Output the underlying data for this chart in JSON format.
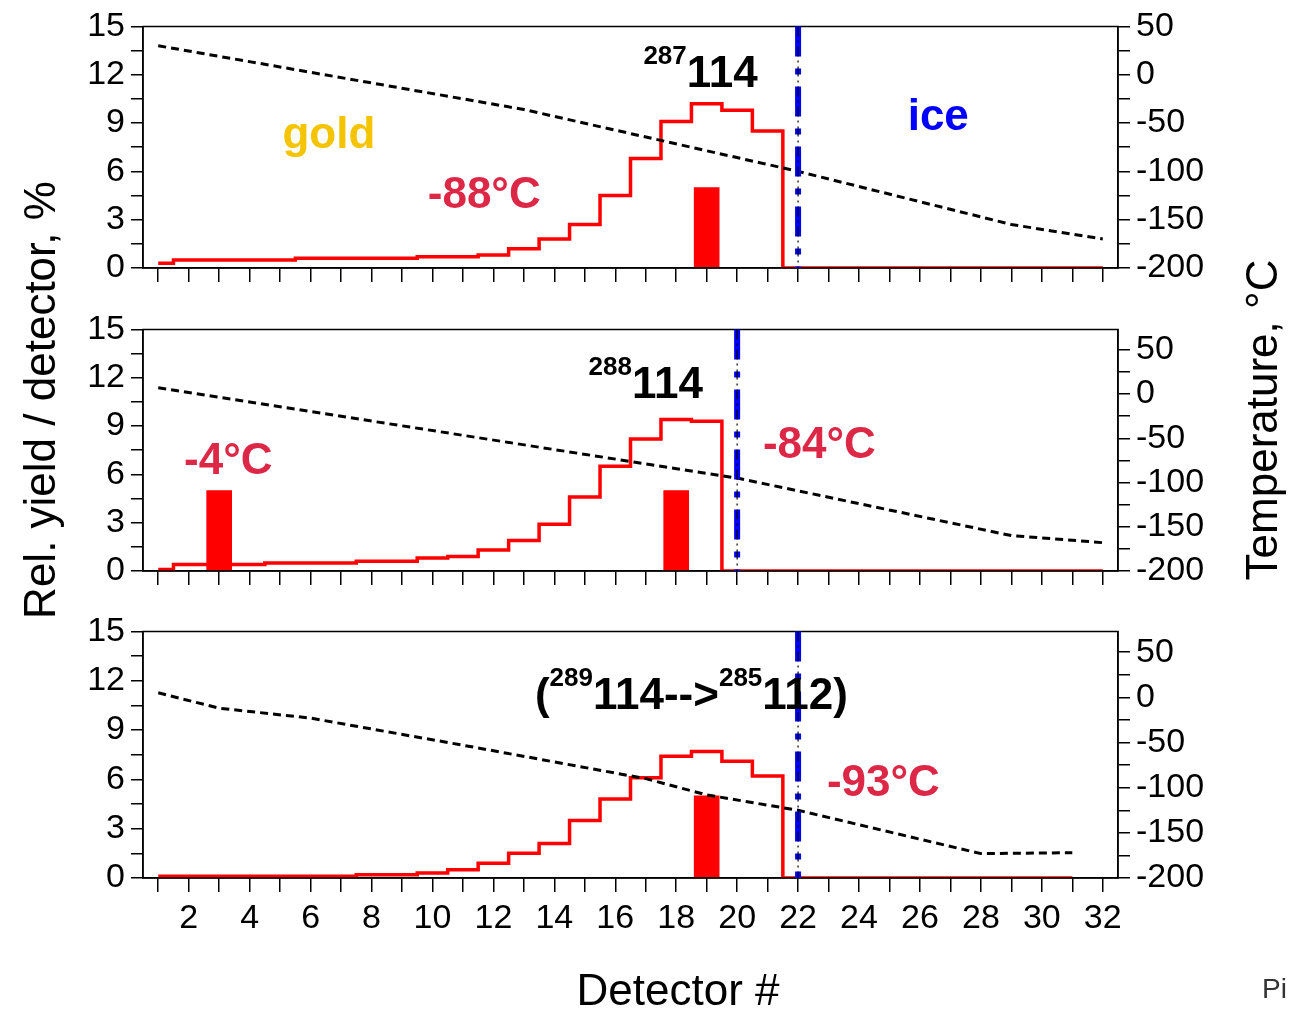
{
  "chart_data": [
    {
      "type": "step",
      "x": [
        1,
        2,
        3,
        4,
        5,
        6,
        7,
        8,
        9,
        10,
        11,
        12,
        13,
        14,
        15,
        16,
        17,
        18,
        19,
        20,
        21,
        22,
        23,
        24,
        25,
        26,
        27,
        28,
        29,
        30,
        31,
        32
      ],
      "series": [
        {
          "color": "#ff0000",
          "values": [
            0.3,
            0.5,
            0.5,
            0.5,
            0.5,
            0.6,
            0.6,
            0.6,
            0.6,
            0.7,
            0.7,
            0.8,
            1.2,
            1.8,
            2.7,
            4.5,
            6.8,
            9.1,
            10.2,
            9.8,
            8.5,
            0,
            0,
            0,
            0,
            0,
            0,
            0,
            0,
            0,
            0,
            0
          ]
        },
        {
          "type": "bar",
          "color": "#ff0000",
          "x": [
            19
          ],
          "values": [
            5
          ]
        },
        {
          "type": "line",
          "axis": "y2",
          "color": "#000000",
          "line_style": "dashed",
          "x": [
            1,
            13,
            22,
            29,
            32
          ],
          "values": [
            30,
            -36,
            -100,
            -155,
            -170
          ]
        }
      ],
      "xlim": [
        0.5,
        32.5
      ],
      "xticks": [
        {
          "value": 1,
          "label": null
        },
        2,
        {
          "value": 3,
          "label": null
        },
        4,
        {
          "value": 5,
          "label": null
        },
        6,
        {
          "value": 7,
          "label": null
        },
        8,
        {
          "value": 9,
          "label": null
        },
        10,
        {
          "value": 11,
          "label": null
        },
        12,
        {
          "value": 13,
          "label": null
        },
        14,
        {
          "value": 15,
          "label": null
        },
        16,
        {
          "value": 17,
          "label": null
        },
        18,
        {
          "value": 19,
          "label": null
        },
        20,
        {
          "value": 21,
          "label": null
        },
        22,
        {
          "value": 23,
          "label": null
        },
        24,
        {
          "value": 25,
          "label": null
        },
        26,
        {
          "value": 27,
          "label": null
        },
        28,
        {
          "value": 29,
          "label": null
        },
        30,
        {
          "value": 31,
          "label": null
        },
        32
      ],
      "ylim": [
        0,
        15
      ],
      "yticks": [
        0,
        {
          "value": 1.5,
          "label": null
        },
        3,
        {
          "value": 4.5,
          "label": null
        },
        6,
        {
          "value": 7.5,
          "label": null
        },
        9,
        {
          "value": 10.5,
          "label": null
        },
        12,
        {
          "value": 13.5,
          "label": null
        },
        15
      ],
      "y2lim": [
        -200,
        50
      ],
      "y2ticks": [
        -200,
        {
          "value": -175,
          "label": null
        },
        -150,
        {
          "value": -125,
          "label": null
        },
        -100,
        {
          "value": -75,
          "label": null
        },
        -50,
        {
          "value": -25,
          "label": null
        },
        0,
        {
          "value": 25,
          "label": null
        },
        50
      ],
      "ref_lines": [
        {
          "axis": "x",
          "value": 22,
          "color": "#0000ff",
          "line_style": "dashed"
        },
        {
          "axis": "x",
          "value": 22,
          "color": "#000000",
          "line_style": "dotted"
        }
      ],
      "annotations": [
        "$^{287}$114",
        "gold",
        "ice",
        "-88°C"
      ],
      "tick_labels": "y",
      "marker": "none",
      "legend": false,
      "grid": false
    },
    {
      "type": "step",
      "x": [
        1,
        2,
        3,
        4,
        5,
        6,
        7,
        8,
        9,
        10,
        11,
        12,
        13,
        14,
        15,
        16,
        17,
        18,
        19,
        20,
        21,
        22,
        23,
        24,
        25,
        26,
        27,
        28,
        29,
        30,
        31,
        32
      ],
      "series": [
        {
          "color": "#ff0000",
          "values": [
            0.1,
            0.4,
            0.4,
            0.4,
            0.5,
            0.5,
            0.5,
            0.6,
            0.6,
            0.8,
            0.9,
            1.3,
            1.9,
            2.9,
            4.6,
            6.5,
            8.2,
            9.4,
            9.3,
            0,
            0,
            0,
            0,
            0,
            0,
            0,
            0,
            0,
            0,
            0,
            0,
            0
          ]
        },
        {
          "type": "bar",
          "color": "#ff0000",
          "x": [
            3,
            18
          ],
          "values": [
            5,
            5
          ]
        },
        {
          "type": "line",
          "axis": "y2",
          "color": "#000000",
          "line_style": "dashed",
          "x": [
            1,
            20,
            29,
            32
          ],
          "values": [
            7,
            -95,
            -160,
            -168
          ]
        }
      ],
      "xlim": [
        0.5,
        32.5
      ],
      "xticks": [
        {
          "value": 1,
          "label": null
        },
        2,
        {
          "value": 3,
          "label": null
        },
        4,
        {
          "value": 5,
          "label": null
        },
        6,
        {
          "value": 7,
          "label": null
        },
        8,
        {
          "value": 9,
          "label": null
        },
        10,
        {
          "value": 11,
          "label": null
        },
        12,
        {
          "value": 13,
          "label": null
        },
        14,
        {
          "value": 15,
          "label": null
        },
        16,
        {
          "value": 17,
          "label": null
        },
        18,
        {
          "value": 19,
          "label": null
        },
        20,
        {
          "value": 21,
          "label": null
        },
        22,
        {
          "value": 23,
          "label": null
        },
        24,
        {
          "value": 25,
          "label": null
        },
        26,
        {
          "value": 27,
          "label": null
        },
        28,
        {
          "value": 29,
          "label": null
        },
        30,
        {
          "value": 31,
          "label": null
        },
        32
      ],
      "ylim": [
        0,
        15
      ],
      "yticks": [
        0,
        {
          "value": 1.5,
          "label": null
        },
        3,
        {
          "value": 4.5,
          "label": null
        },
        6,
        {
          "value": 7.5,
          "label": null
        },
        9,
        {
          "value": 10.5,
          "label": null
        },
        12,
        {
          "value": 13.5,
          "label": null
        },
        15
      ],
      "y2lim": [
        -200,
        73
      ],
      "y2ticks": [
        -200,
        {
          "value": -175,
          "label": null
        },
        -150,
        {
          "value": -125,
          "label": null
        },
        -100,
        {
          "value": -75,
          "label": null
        },
        -50,
        {
          "value": -25,
          "label": null
        },
        0,
        {
          "value": 25,
          "label": null
        },
        50
      ],
      "ylabel": "Rel. yield / detector, %",
      "y2label": "Temperature, °C",
      "ref_lines": [
        {
          "axis": "x",
          "value": 20,
          "color": "#0000ff",
          "line_style": "dashed"
        },
        {
          "axis": "x",
          "value": 20,
          "color": "#000000",
          "line_style": "dotted"
        }
      ],
      "annotations": [
        "$^{288}$114",
        "-4°C",
        "-84°C"
      ],
      "tick_labels": "y",
      "marker": "none",
      "legend": false,
      "grid": false
    },
    {
      "type": "step",
      "x": [
        1,
        2,
        3,
        4,
        5,
        6,
        7,
        8,
        9,
        10,
        11,
        12,
        13,
        14,
        15,
        16,
        17,
        18,
        19,
        20,
        21,
        22,
        23,
        24,
        25,
        26,
        27,
        28,
        29,
        30,
        31
      ],
      "series": [
        {
          "color": "#ff0000",
          "values": [
            0.1,
            0.1,
            0.1,
            0.1,
            0.1,
            0.1,
            0.1,
            0.2,
            0.2,
            0.3,
            0.5,
            0.9,
            1.5,
            2.1,
            3.5,
            4.8,
            6.1,
            7.4,
            7.7,
            7.1,
            6.2,
            0,
            0,
            0,
            0,
            0,
            0,
            0,
            0,
            0,
            0
          ]
        },
        {
          "type": "bar",
          "color": "#ff0000",
          "x": [
            19
          ],
          "values": [
            5
          ]
        },
        {
          "type": "line",
          "axis": "y2",
          "color": "#000000",
          "line_style": "dashed",
          "x": [
            1,
            3,
            6,
            11,
            17,
            19,
            22,
            28,
            31
          ],
          "values": [
            5,
            -12,
            -23,
            -53,
            -90,
            -108,
            -125,
            -173,
            -172
          ]
        }
      ],
      "xlim": [
        0.5,
        32.5
      ],
      "xticks": [
        {
          "value": 1,
          "label": null
        },
        2,
        {
          "value": 3,
          "label": null
        },
        4,
        {
          "value": 5,
          "label": null
        },
        6,
        {
          "value": 7,
          "label": null
        },
        8,
        {
          "value": 9,
          "label": null
        },
        10,
        {
          "value": 11,
          "label": null
        },
        12,
        {
          "value": 13,
          "label": null
        },
        14,
        {
          "value": 15,
          "label": null
        },
        16,
        {
          "value": 17,
          "label": null
        },
        18,
        {
          "value": 19,
          "label": null
        },
        20,
        {
          "value": 21,
          "label": null
        },
        22,
        {
          "value": 23,
          "label": null
        },
        24,
        {
          "value": 25,
          "label": null
        },
        26,
        {
          "value": 27,
          "label": null
        },
        28,
        {
          "value": 29,
          "label": null
        },
        30,
        {
          "value": 31,
          "label": null
        },
        32
      ],
      "ylim": [
        0,
        15
      ],
      "yticks": [
        0,
        {
          "value": 1.5,
          "label": null
        },
        3,
        {
          "value": 4.5,
          "label": null
        },
        6,
        {
          "value": 7.5,
          "label": null
        },
        9,
        {
          "value": 10.5,
          "label": null
        },
        12,
        {
          "value": 13.5,
          "label": null
        },
        15
      ],
      "y2lim": [
        -200,
        73
      ],
      "y2ticks": [
        -200,
        {
          "value": -175,
          "label": null
        },
        -150,
        {
          "value": -125,
          "label": null
        },
        -100,
        {
          "value": -75,
          "label": null
        },
        -50,
        {
          "value": -25,
          "label": null
        },
        0,
        {
          "value": 25,
          "label": null
        },
        50
      ],
      "xlabel": "Detector #",
      "ref_lines": [
        {
          "axis": "x",
          "value": 22,
          "color": "#0000ff",
          "line_style": "dashed"
        },
        {
          "axis": "x",
          "value": 22,
          "color": "#000000",
          "line_style": "dotted"
        }
      ],
      "annotations": [
        "($^{289}$114-->$^{285}$112)",
        "-93°C",
        "Pi"
      ],
      "marker": "none",
      "legend": false,
      "grid": false
    }
  ]
}
